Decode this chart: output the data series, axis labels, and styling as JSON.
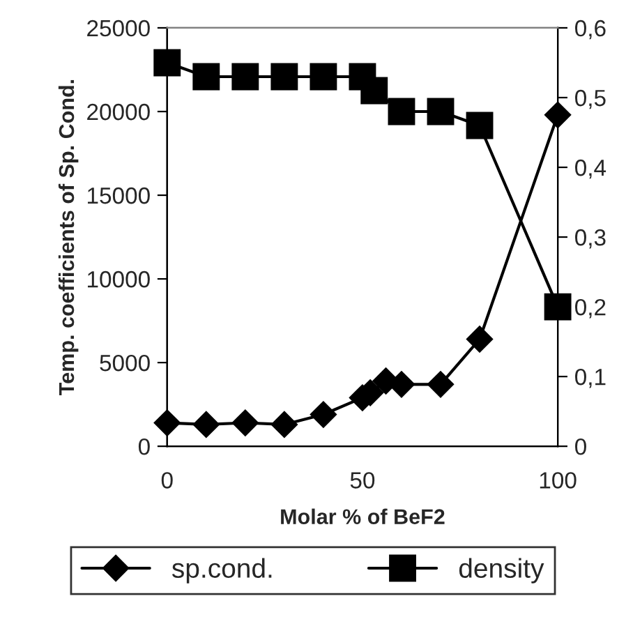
{
  "chart_data": {
    "type": "line",
    "xlabel": "Molar % of BeF2",
    "ylabel": "Temp. coefficients of Sp. Cond.",
    "xlim": [
      0,
      100
    ],
    "xticks": [
      0,
      50,
      100
    ],
    "ylim": [
      0,
      25000
    ],
    "yticks": [
      0,
      5000,
      10000,
      15000,
      20000,
      25000
    ],
    "y2lim": [
      0,
      0.6
    ],
    "y2ticks": [
      0,
      {
        "value": 0.1,
        "label": "0,1"
      },
      {
        "value": 0.2,
        "label": "0,2"
      },
      {
        "value": 0.3,
        "label": "0,3"
      },
      {
        "value": 0.4,
        "label": "0,4"
      },
      {
        "value": 0.5,
        "label": "0,5"
      },
      {
        "value": 0.6,
        "label": "0,6"
      }
    ],
    "grid": false,
    "legend": "bottom",
    "series": [
      {
        "name": "sp.cond.",
        "color": "#000000",
        "marker": "diamond",
        "x": [
          0,
          10,
          20,
          30,
          40,
          50,
          52,
          56,
          60,
          70,
          80,
          100
        ],
        "values": [
          1400,
          1300,
          1400,
          1300,
          1900,
          2900,
          3200,
          3900,
          3700,
          3700,
          6400,
          19800
        ]
      },
      {
        "name": "density",
        "color": "#000000",
        "marker": "square",
        "axis": "y2",
        "x": [
          0,
          10,
          20,
          30,
          40,
          50,
          53,
          60,
          70,
          80,
          100
        ],
        "values": [
          0.55,
          0.53,
          0.53,
          0.53,
          0.53,
          0.53,
          0.51,
          0.48,
          0.48,
          0.46,
          0.2
        ]
      }
    ]
  }
}
